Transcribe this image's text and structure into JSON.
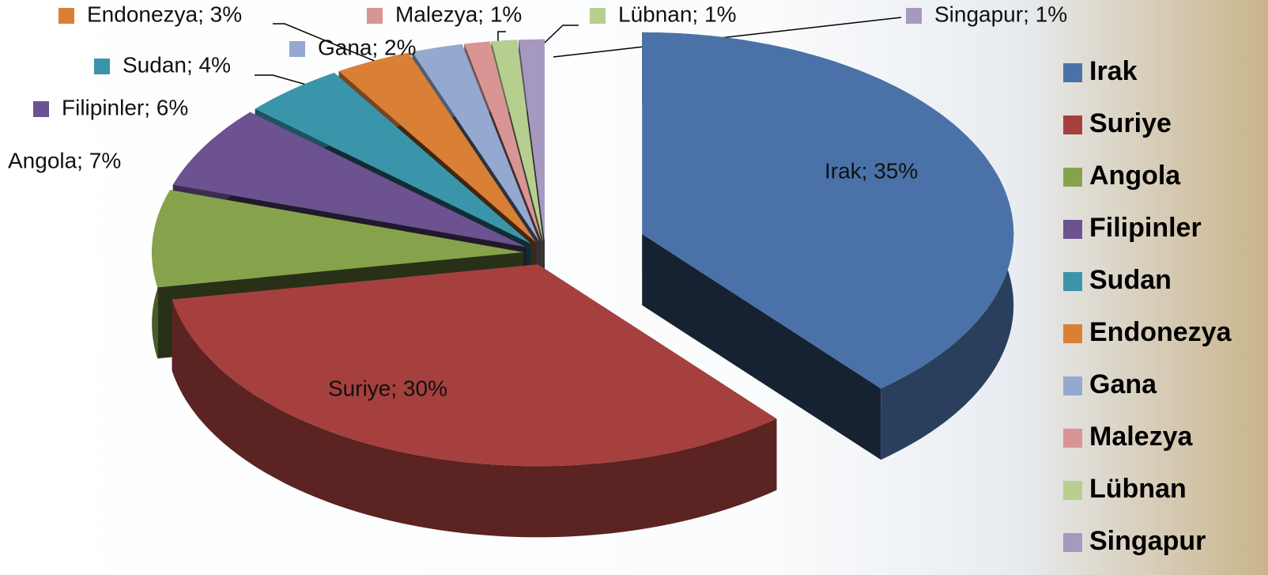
{
  "chart_data": {
    "type": "pie3d",
    "categories": [
      "Irak",
      "Suriye",
      "Angola",
      "Filipinler",
      "Sudan",
      "Endonezya",
      "Gana",
      "Malezya",
      "Lübnan",
      "Singapur"
    ],
    "values": [
      35,
      30,
      7,
      6,
      4,
      3,
      2,
      1,
      1,
      1
    ],
    "value_labels": [
      "Irak; 35%",
      "Suriye; 30%",
      "Angola; 7%",
      "Filipinler; 6%",
      "Sudan; 4%",
      "Endonezya; 3%",
      "Gana; 2%",
      "Malezya; 1%",
      "Lübnan; 1%",
      "Singapur; 1%"
    ],
    "colors": [
      "#4a72a8",
      "#a5403e",
      "#86a34b",
      "#6c5290",
      "#3a95ab",
      "#d97f36",
      "#93a9cf",
      "#d99594",
      "#b6cf8f",
      "#a699c0"
    ],
    "legend": "right"
  }
}
